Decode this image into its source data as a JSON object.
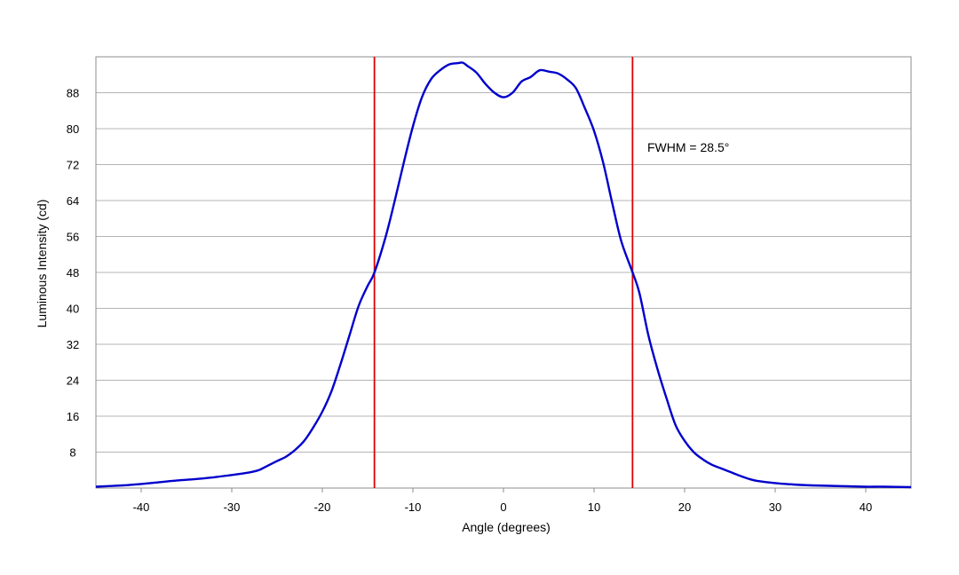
{
  "chart_data": {
    "type": "line",
    "title": "",
    "xlabel": "Angle (degrees)",
    "ylabel": "Luminous Intensity (cd)",
    "xlim": [
      -45,
      45
    ],
    "ylim": [
      0,
      96
    ],
    "xticks": [
      -40,
      -30,
      -20,
      -10,
      0,
      10,
      20,
      30,
      40
    ],
    "yticks": [
      8,
      16,
      24,
      32,
      40,
      48,
      56,
      64,
      72,
      80,
      88
    ],
    "grid": "horizontal",
    "legend": "none",
    "annotation": "FWHM = 28.5°",
    "fwhm_markers": [
      -14.25,
      14.25
    ],
    "colors": {
      "series": "#0000cc",
      "markers": "#e00000",
      "grid": "#b4b4b4",
      "frame": "#8c8c8c"
    },
    "series": [
      {
        "x": [
          -45,
          -42,
          -40,
          -38,
          -36,
          -34,
          -32,
          -30,
          -28,
          -27,
          -26,
          -25,
          -24,
          -23,
          -22,
          -21,
          -20,
          -19,
          -18,
          -17,
          -16,
          -15,
          -14.25,
          -13,
          -12,
          -11,
          -10,
          -9,
          -8,
          -7,
          -6,
          -5,
          -4.5,
          -4,
          -3,
          -2,
          -1,
          0,
          1,
          2,
          3,
          4,
          5,
          6,
          7,
          8,
          9,
          10,
          11,
          12,
          13,
          14.25,
          15,
          16,
          17,
          18,
          19,
          20,
          21,
          22,
          23,
          24,
          25,
          26,
          27,
          28,
          30,
          32,
          34,
          36,
          38,
          40,
          42,
          45
        ],
        "y": [
          0.3,
          0.6,
          0.9,
          1.3,
          1.7,
          2.0,
          2.4,
          2.9,
          3.5,
          4.0,
          5.0,
          6.0,
          7.0,
          8.5,
          10.5,
          13.5,
          17.0,
          21.5,
          27.5,
          34.0,
          40.5,
          45.0,
          48.0,
          56.0,
          64.0,
          72.5,
          80.5,
          87.0,
          91.0,
          93.0,
          94.3,
          94.6,
          94.7,
          94.0,
          92.5,
          90.0,
          88.0,
          87.0,
          88.0,
          90.5,
          91.5,
          93.0,
          92.7,
          92.3,
          91.0,
          89.0,
          84.5,
          79.5,
          72.5,
          63.5,
          55.0,
          48.0,
          43.5,
          34.0,
          26.5,
          20.0,
          14.0,
          10.5,
          8.0,
          6.4,
          5.2,
          4.4,
          3.6,
          2.8,
          2.1,
          1.6,
          1.1,
          0.8,
          0.6,
          0.5,
          0.4,
          0.3,
          0.3,
          0.2
        ]
      }
    ]
  }
}
